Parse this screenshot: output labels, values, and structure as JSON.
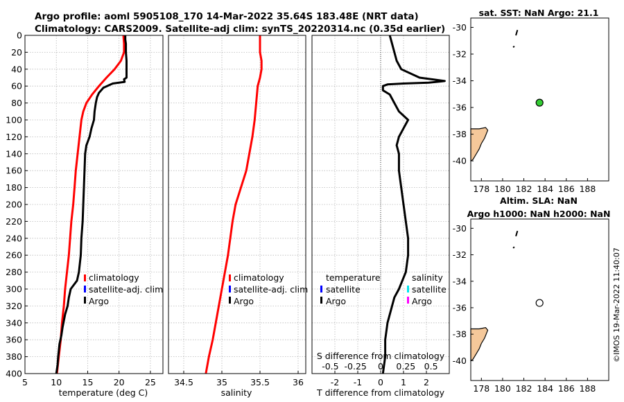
{
  "figure": {
    "title_line1": "Argo profile: aoml 5905108_170 14-Mar-2022 35.64S 183.48E (NRT data)",
    "title_line2": "Climatology: CARS2009. Satellite-adj clim: synTS_20220314.nc (0.35d earlier)",
    "timestamp": "©IMOS 19-Mar-2022 11:40:07"
  },
  "colors": {
    "climatology": "#ff0000",
    "satellite": "#0000ff",
    "argo": "#000000",
    "salinity_satellite": "#00e5ee",
    "salinity_argo": "#ff00ff",
    "land": "#f5c89a",
    "marker_fill": "#33cc33",
    "grid": "#b8b8b8"
  },
  "chart_data": [
    {
      "type": "line",
      "id": "temperature",
      "xlabel": "temperature (deg C)",
      "ylabel": "",
      "xlim": [
        5,
        27
      ],
      "ylim": [
        400,
        0
      ],
      "xticks": [
        5,
        10,
        15,
        20,
        25
      ],
      "yticks": [
        0,
        20,
        40,
        60,
        80,
        100,
        120,
        140,
        160,
        180,
        200,
        220,
        240,
        260,
        280,
        300,
        320,
        340,
        360,
        380,
        400
      ],
      "grid": true,
      "legend": [
        "climatology",
        "satellite-adj. clim",
        "Argo"
      ],
      "legend_position": "right-middle",
      "series": [
        {
          "name": "climatology",
          "color": "#ff0000",
          "points": [
            [
              20.7,
              0
            ],
            [
              20.8,
              10
            ],
            [
              20.8,
              20
            ],
            [
              20.3,
              30
            ],
            [
              19.3,
              40
            ],
            [
              18.0,
              50
            ],
            [
              16.8,
              60
            ],
            [
              15.7,
              70
            ],
            [
              14.8,
              80
            ],
            [
              14.3,
              90
            ],
            [
              14.0,
              100
            ],
            [
              13.7,
              120
            ],
            [
              13.4,
              140
            ],
            [
              13.1,
              160
            ],
            [
              12.9,
              180
            ],
            [
              12.7,
              200
            ],
            [
              12.4,
              220
            ],
            [
              12.2,
              240
            ],
            [
              12.0,
              260
            ],
            [
              11.7,
              280
            ],
            [
              11.4,
              300
            ],
            [
              11.2,
              320
            ],
            [
              10.9,
              340
            ],
            [
              10.7,
              360
            ],
            [
              10.4,
              380
            ],
            [
              10.1,
              400
            ]
          ]
        },
        {
          "name": "Argo",
          "color": "#000000",
          "points": [
            [
              21.0,
              0
            ],
            [
              21.0,
              5
            ],
            [
              21.1,
              10
            ],
            [
              21.1,
              20
            ],
            [
              21.2,
              30
            ],
            [
              21.2,
              40
            ],
            [
              21.2,
              50
            ],
            [
              20.8,
              52
            ],
            [
              20.9,
              55
            ],
            [
              19.0,
              57
            ],
            [
              17.5,
              62
            ],
            [
              16.8,
              68
            ],
            [
              16.5,
              73
            ],
            [
              16.3,
              80
            ],
            [
              16.1,
              90
            ],
            [
              16.0,
              100
            ],
            [
              15.6,
              110
            ],
            [
              15.3,
              120
            ],
            [
              14.8,
              130
            ],
            [
              14.6,
              140
            ],
            [
              14.5,
              160
            ],
            [
              14.4,
              180
            ],
            [
              14.3,
              200
            ],
            [
              14.2,
              220
            ],
            [
              14.0,
              240
            ],
            [
              13.9,
              260
            ],
            [
              13.6,
              280
            ],
            [
              13.3,
              290
            ],
            [
              12.3,
              300
            ],
            [
              12.0,
              310
            ],
            [
              11.8,
              320
            ],
            [
              11.4,
              330
            ],
            [
              11.0,
              345
            ],
            [
              10.8,
              355
            ],
            [
              10.5,
              365
            ],
            [
              10.3,
              380
            ],
            [
              10.2,
              390
            ],
            [
              10.0,
              400
            ]
          ]
        }
      ]
    },
    {
      "type": "line",
      "id": "salinity",
      "xlabel": "salinity",
      "ylabel": "",
      "xlim": [
        34.3,
        36.1
      ],
      "ylim": [
        400,
        0
      ],
      "xticks": [
        34.5,
        35,
        35.5,
        36
      ],
      "grid": true,
      "legend": [
        "climatology",
        "satellite-adj. clim",
        "Argo"
      ],
      "legend_position": "right-middle",
      "series": [
        {
          "name": "climatology",
          "color": "#ff0000",
          "points": [
            [
              35.5,
              0
            ],
            [
              35.5,
              10
            ],
            [
              35.5,
              20
            ],
            [
              35.52,
              30
            ],
            [
              35.52,
              40
            ],
            [
              35.5,
              50
            ],
            [
              35.47,
              60
            ],
            [
              35.45,
              80
            ],
            [
              35.43,
              100
            ],
            [
              35.4,
              120
            ],
            [
              35.36,
              140
            ],
            [
              35.32,
              160
            ],
            [
              35.25,
              180
            ],
            [
              35.18,
              200
            ],
            [
              35.14,
              220
            ],
            [
              35.11,
              240
            ],
            [
              35.08,
              260
            ],
            [
              35.04,
              280
            ],
            [
              35.0,
              300
            ],
            [
              34.96,
              320
            ],
            [
              34.92,
              340
            ],
            [
              34.88,
              360
            ],
            [
              34.83,
              380
            ],
            [
              34.79,
              400
            ]
          ]
        }
      ]
    },
    {
      "type": "line",
      "id": "difference",
      "xlabel": "T difference from climatology",
      "xlabel_top": "S difference from climatology",
      "xlim": [
        -3,
        3
      ],
      "ylim": [
        400,
        0
      ],
      "xticks": [
        -2,
        -1,
        0,
        1,
        2
      ],
      "xticks_top": [
        "-0.5",
        "-0.25",
        "0",
        "0.25",
        "0.5"
      ],
      "grid": true,
      "legend_left_title": "temperature",
      "legend_left": [
        "satellite",
        "Argo"
      ],
      "legend_right_title": "salinity",
      "legend_right": [
        "satellite",
        "Argo"
      ],
      "series": [
        {
          "name": "T diff Argo",
          "color": "#000000",
          "points": [
            [
              0.4,
              0
            ],
            [
              0.5,
              10
            ],
            [
              0.6,
              20
            ],
            [
              0.7,
              30
            ],
            [
              0.9,
              40
            ],
            [
              1.7,
              50
            ],
            [
              2.8,
              54
            ],
            [
              2.1,
              56
            ],
            [
              1.0,
              57
            ],
            [
              0.3,
              58
            ],
            [
              0.1,
              60
            ],
            [
              0.1,
              65
            ],
            [
              0.4,
              70
            ],
            [
              0.6,
              80
            ],
            [
              0.8,
              90
            ],
            [
              1.0,
              95
            ],
            [
              1.2,
              100
            ],
            [
              1.0,
              110
            ],
            [
              0.8,
              120
            ],
            [
              0.7,
              130
            ],
            [
              0.8,
              140
            ],
            [
              0.8,
              160
            ],
            [
              0.9,
              180
            ],
            [
              1.0,
              200
            ],
            [
              1.1,
              220
            ],
            [
              1.2,
              240
            ],
            [
              1.2,
              260
            ],
            [
              1.1,
              280
            ],
            [
              0.8,
              300
            ],
            [
              0.6,
              310
            ],
            [
              0.5,
              320
            ],
            [
              0.3,
              340
            ],
            [
              0.2,
              360
            ],
            [
              0.2,
              380
            ],
            [
              0.1,
              400
            ]
          ]
        }
      ]
    },
    {
      "type": "scatter",
      "id": "map_sst",
      "title": "sat. SST: NaN Argo: 21.1",
      "xlim": [
        177,
        190
      ],
      "ylim": [
        -41.5,
        -29.3
      ],
      "xticks": [
        178,
        180,
        182,
        184,
        186,
        188
      ],
      "yticks": [
        -30,
        -32,
        -34,
        -36,
        -38,
        -40
      ],
      "points": [
        {
          "x": 183.48,
          "y": -35.64,
          "fill": "#33cc33"
        }
      ]
    },
    {
      "type": "scatter",
      "id": "map_sla",
      "title_line1": "Altim. SLA: NaN",
      "title_line2": "Argo h1000: NaN h2000: NaN",
      "xlim": [
        177,
        190
      ],
      "ylim": [
        -41.5,
        -29.3
      ],
      "xticks": [
        178,
        180,
        182,
        184,
        186,
        188
      ],
      "yticks": [
        -30,
        -32,
        -34,
        -36,
        -38,
        -40
      ],
      "points": [
        {
          "x": 183.48,
          "y": -35.64,
          "fill": "#ffffff"
        }
      ]
    }
  ]
}
